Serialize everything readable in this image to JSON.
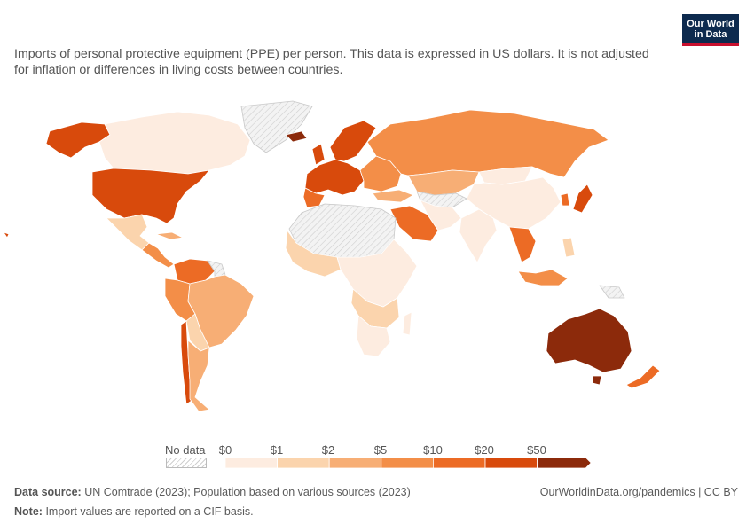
{
  "subtitle": "Imports of personal protective equipment (PPE) per person. This data is expressed in US dollars. It is not adjusted for inflation or differences in living costs between countries.",
  "logo": {
    "line1": "Our World",
    "line2": "in Data"
  },
  "legend": {
    "no_data_label": "No data",
    "ticks": [
      "$0",
      "$1",
      "$2",
      "$5",
      "$10",
      "$20",
      "$50"
    ],
    "colors": [
      "#fdece0",
      "#fbd4ad",
      "#f7ae75",
      "#f38e48",
      "#ec6b25",
      "#d84a0c",
      "#8c2a0b"
    ],
    "no_data_color": "#d9d9d9"
  },
  "footer": {
    "source_label": "Data source:",
    "source_text": "UN Comtrade (2023); Population based on various sources (2023)",
    "note_label": "Note:",
    "note_text": "Import values are reported on a CIF basis.",
    "right": "OurWorldinData.org/pandemics | CC BY"
  }
}
